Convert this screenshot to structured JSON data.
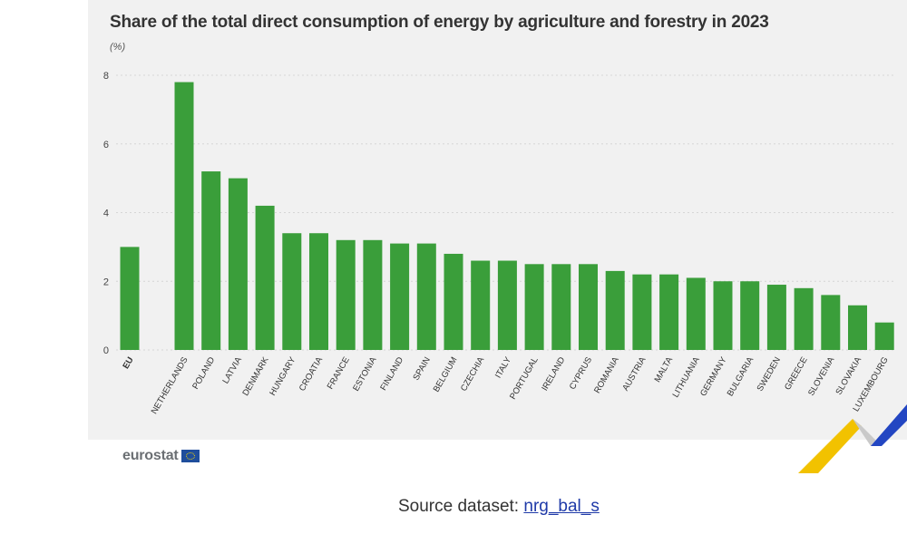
{
  "title": "Share of the total direct consumption of energy by agriculture and forestry in 2023",
  "unit": "(%)",
  "logo_text": "eurostat",
  "source": {
    "label": "Source dataset: ",
    "link": "nrg_bal_s"
  },
  "colors": {
    "bar": "#3a9e3a",
    "panel": "#f1f1f1",
    "grid": "#d6d6d6",
    "link": "#1f3aa8"
  },
  "chart_data": {
    "type": "bar",
    "title": "Share of the total direct consumption of energy by agriculture and forestry in 2023",
    "ylabel": "(%)",
    "xlabel": "",
    "ylim": [
      0,
      8
    ],
    "yticks": [
      0,
      2,
      4,
      6,
      8
    ],
    "grid": true,
    "categories": [
      "EU",
      "NETHERLANDS",
      "POLAND",
      "LATVIA",
      "DENMARK",
      "HUNGARY",
      "CROATIA",
      "FRANCE",
      "ESTONIA",
      "FINLAND",
      "SPAIN",
      "BELGIUM",
      "CZECHIA",
      "ITALY",
      "PORTUGAL",
      "IRELAND",
      "CYPRUS",
      "ROMANIA",
      "AUSTRIA",
      "MALTA",
      "LITHUANIA",
      "GERMANY",
      "BULGARIA",
      "SWEDEN",
      "GREECE",
      "SLOVENIA",
      "SLOVAKIA",
      "LUXEMBOURG"
    ],
    "values": [
      3.0,
      7.8,
      5.2,
      5.0,
      4.2,
      3.4,
      3.4,
      3.2,
      3.2,
      3.1,
      3.1,
      2.8,
      2.6,
      2.6,
      2.5,
      2.5,
      2.5,
      2.3,
      2.2,
      2.2,
      2.1,
      2.0,
      2.0,
      1.9,
      1.8,
      1.6,
      1.3,
      0.8
    ]
  }
}
